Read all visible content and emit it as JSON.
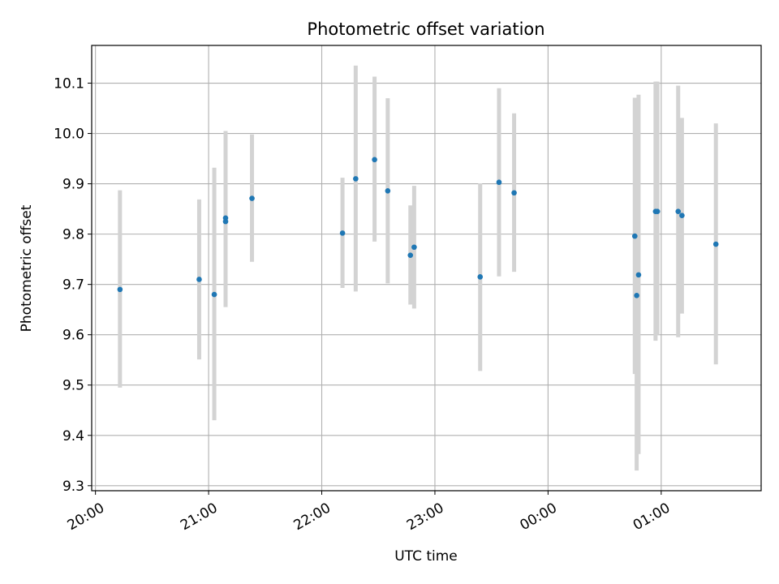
{
  "chart_data": {
    "type": "scatter",
    "title": "Photometric offset variation",
    "xlabel": "UTC time",
    "ylabel": "Photometric offset",
    "grid": true,
    "x_tick_labels": [
      "20:00",
      "21:00",
      "22:00",
      "23:00",
      "00:00",
      "01:00"
    ],
    "y_tick_labels": [
      "9.3",
      "9.4",
      "9.5",
      "9.6",
      "9.7",
      "9.8",
      "9.9",
      "10.0",
      "10.1"
    ],
    "xlim": [
      "19:58",
      "01:53"
    ],
    "ylim": [
      9.29,
      10.175
    ],
    "colors": {
      "points": "#1f77b4",
      "errorbars": "#d3d3d3",
      "grid": "#b0b0b0"
    },
    "points": [
      {
        "x": "20:13",
        "y": 9.69,
        "yerr_low": 9.495,
        "yerr_high": 9.887
      },
      {
        "x": "20:55",
        "y": 9.71,
        "yerr_low": 9.551,
        "yerr_high": 9.869
      },
      {
        "x": "21:03",
        "y": 9.68,
        "yerr_low": 9.43,
        "yerr_high": 9.932
      },
      {
        "x": "21:09",
        "y": 9.825,
        "yerr_low": 9.655,
        "yerr_high": 9.995
      },
      {
        "x": "21:09",
        "y": 9.832,
        "yerr_low": 9.66,
        "yerr_high": 10.005
      },
      {
        "x": "21:23",
        "y": 9.871,
        "yerr_low": 9.745,
        "yerr_high": 9.998
      },
      {
        "x": "22:11",
        "y": 9.802,
        "yerr_low": 9.693,
        "yerr_high": 9.912
      },
      {
        "x": "22:18",
        "y": 9.91,
        "yerr_low": 9.686,
        "yerr_high": 10.135
      },
      {
        "x": "22:28",
        "y": 9.948,
        "yerr_low": 9.785,
        "yerr_high": 10.113
      },
      {
        "x": "22:35",
        "y": 9.886,
        "yerr_low": 9.702,
        "yerr_high": 10.07
      },
      {
        "x": "22:47",
        "y": 9.758,
        "yerr_low": 9.66,
        "yerr_high": 9.857
      },
      {
        "x": "22:49",
        "y": 9.774,
        "yerr_low": 9.652,
        "yerr_high": 9.896
      },
      {
        "x": "23:24",
        "y": 9.715,
        "yerr_low": 9.528,
        "yerr_high": 9.901
      },
      {
        "x": "23:34",
        "y": 9.903,
        "yerr_low": 9.716,
        "yerr_high": 10.09
      },
      {
        "x": "23:42",
        "y": 9.882,
        "yerr_low": 9.725,
        "yerr_high": 10.04
      },
      {
        "x": "00:46",
        "y": 9.796,
        "yerr_low": 9.522,
        "yerr_high": 10.071
      },
      {
        "x": "00:47",
        "y": 9.678,
        "yerr_low": 9.33,
        "yerr_high": 10.027
      },
      {
        "x": "00:48",
        "y": 9.719,
        "yerr_low": 9.363,
        "yerr_high": 10.077
      },
      {
        "x": "00:57",
        "y": 9.845,
        "yerr_low": 9.588,
        "yerr_high": 10.103
      },
      {
        "x": "00:58",
        "y": 9.845,
        "yerr_low": 9.6,
        "yerr_high": 10.103
      },
      {
        "x": "01:09",
        "y": 9.845,
        "yerr_low": 9.595,
        "yerr_high": 10.095
      },
      {
        "x": "01:11",
        "y": 9.837,
        "yerr_low": 9.642,
        "yerr_high": 10.031
      },
      {
        "x": "01:29",
        "y": 9.78,
        "yerr_low": 9.541,
        "yerr_high": 10.02
      }
    ]
  }
}
